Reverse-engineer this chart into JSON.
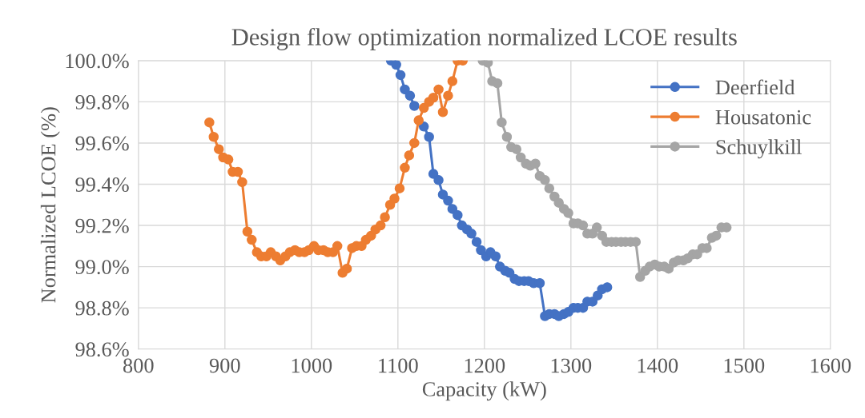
{
  "chart_data": {
    "type": "line",
    "title": "Design flow optimization normalized LCOE results",
    "xlabel": "Capacity (kW)",
    "ylabel": "Normalized LCOE (%)",
    "xlim": [
      800,
      1600
    ],
    "xticks": [
      800,
      900,
      1000,
      1100,
      1200,
      1300,
      1400,
      1500,
      1600
    ],
    "ylim": [
      98.6,
      100.0
    ],
    "yticks": [
      {
        "value": 98.6,
        "label": "98.6%"
      },
      {
        "value": 98.8,
        "label": "98.8%"
      },
      {
        "value": 99.0,
        "label": "99.0%"
      },
      {
        "value": 99.2,
        "label": "99.2%"
      },
      {
        "value": 99.4,
        "label": "99.4%"
      },
      {
        "value": 99.6,
        "label": "99.6%"
      },
      {
        "value": 99.8,
        "label": "99.8%"
      },
      {
        "value": 100.0,
        "label": "100.0%"
      }
    ],
    "grid": true,
    "legend": "top right",
    "marker": "circle",
    "line_style": "solid",
    "series": [
      {
        "name": "Deerfield",
        "color": "#4472c4",
        "x": [
          1092,
          1098,
          1103,
          1108,
          1114,
          1119,
          1124,
          1130,
          1136,
          1141,
          1147,
          1152,
          1158,
          1163,
          1169,
          1174,
          1180,
          1185,
          1191,
          1196,
          1202,
          1207,
          1213,
          1218,
          1224,
          1229,
          1235,
          1240,
          1246,
          1251,
          1257,
          1264,
          1270,
          1275,
          1281,
          1286,
          1292,
          1297,
          1303,
          1308,
          1314,
          1319,
          1325,
          1331,
          1336,
          1342
        ],
        "values": [
          100.0,
          99.98,
          99.93,
          99.86,
          99.83,
          99.78,
          null,
          99.68,
          99.63,
          99.45,
          99.42,
          99.35,
          99.32,
          99.28,
          99.25,
          99.2,
          99.18,
          99.16,
          99.12,
          99.08,
          99.05,
          99.07,
          99.05,
          99.0,
          98.98,
          98.97,
          98.94,
          98.93,
          98.93,
          98.93,
          98.92,
          98.92,
          98.76,
          98.77,
          98.77,
          98.76,
          98.77,
          98.78,
          98.8,
          98.8,
          98.8,
          98.83,
          98.83,
          98.86,
          98.89,
          98.9
        ]
      },
      {
        "name": "Housatonic",
        "color": "#ed7d31",
        "x": [
          882,
          887,
          893,
          898,
          904,
          909,
          915,
          920,
          926,
          931,
          937,
          942,
          948,
          953,
          959,
          964,
          970,
          975,
          981,
          986,
          992,
          997,
          1003,
          1008,
          1014,
          1019,
          1025,
          1030,
          1036,
          1041,
          1047,
          1052,
          1058,
          1063,
          1069,
          1074,
          1080,
          1085,
          1091,
          1096,
          1102,
          1108,
          1113,
          1119,
          1124,
          1130,
          1136,
          1141,
          1147,
          1152,
          1158,
          1163,
          1169,
          1175
        ],
        "values": [
          99.7,
          99.63,
          99.57,
          99.53,
          99.52,
          99.46,
          99.46,
          99.41,
          99.17,
          99.13,
          99.07,
          99.05,
          99.05,
          99.07,
          99.05,
          99.03,
          99.05,
          99.07,
          99.08,
          99.07,
          99.07,
          99.08,
          99.1,
          99.08,
          99.08,
          99.07,
          99.07,
          99.1,
          98.97,
          98.99,
          99.09,
          99.1,
          99.1,
          99.13,
          99.15,
          99.18,
          99.2,
          99.24,
          99.3,
          99.33,
          99.38,
          99.48,
          99.54,
          99.6,
          99.71,
          99.77,
          99.8,
          99.82,
          99.86,
          99.75,
          99.83,
          99.9,
          100.0,
          100.0
        ]
      },
      {
        "name": "Schuylkill",
        "color": "#a5a5a5",
        "x": [
          1198,
          1204,
          1209,
          1215,
          1220,
          1226,
          1231,
          1237,
          1242,
          1248,
          1253,
          1259,
          1264,
          1270,
          1275,
          1281,
          1286,
          1292,
          1297,
          1303,
          1308,
          1314,
          1319,
          1325,
          1330,
          1336,
          1341,
          1347,
          1352,
          1358,
          1363,
          1369,
          1375,
          1380,
          1386,
          1391,
          1397,
          1402,
          1408,
          1413,
          1419,
          1424,
          1430,
          1435,
          1441,
          1446,
          1452,
          1457,
          1463,
          1468,
          1474,
          1480
        ],
        "values": [
          100.0,
          99.99,
          99.9,
          99.89,
          99.7,
          99.63,
          99.58,
          99.57,
          99.53,
          99.5,
          99.49,
          99.5,
          99.44,
          99.42,
          99.38,
          99.34,
          99.31,
          99.28,
          99.26,
          99.21,
          99.21,
          99.2,
          99.16,
          99.16,
          99.19,
          99.15,
          99.12,
          99.12,
          99.12,
          99.12,
          99.12,
          99.12,
          99.12,
          98.95,
          98.98,
          99.0,
          99.01,
          99.0,
          99.0,
          98.99,
          99.02,
          99.03,
          99.03,
          99.04,
          99.06,
          99.06,
          99.09,
          99.09,
          99.14,
          99.15,
          99.19,
          99.19
        ]
      }
    ]
  }
}
